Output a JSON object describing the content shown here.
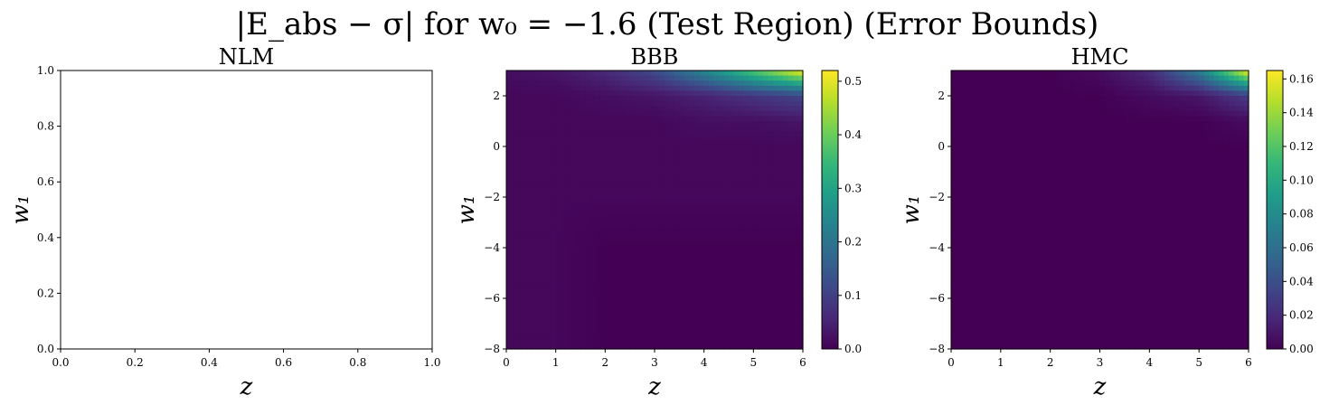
{
  "figure": {
    "suptitle": "|E_abs − σ| for w₀ = −1.6 (Test Region) (Error Bounds)"
  },
  "colormap": {
    "name": "viridis",
    "stops": [
      "#440154",
      "#482878",
      "#3e4989",
      "#31688e",
      "#26828e",
      "#1f9e89",
      "#35b779",
      "#6ece58",
      "#b5de2b",
      "#fde725"
    ]
  },
  "chart_data": [
    {
      "type": "heatmap",
      "title": "NLM",
      "xlabel": "z",
      "ylabel": "w₁",
      "xlim": [
        0,
        1
      ],
      "ylim": [
        0,
        1
      ],
      "xticks": [
        "0.0",
        "0.2",
        "0.4",
        "0.6",
        "0.8",
        "1.0"
      ],
      "yticks": [
        "0.0",
        "0.2",
        "0.4",
        "0.6",
        "0.8",
        "1.0"
      ],
      "empty": true
    },
    {
      "type": "heatmap",
      "title": "BBB",
      "xlabel": "z",
      "ylabel": "w₁",
      "xlim": [
        0,
        6
      ],
      "ylim": [
        -8,
        3
      ],
      "xticks": [
        "0",
        "1",
        "2",
        "3",
        "4",
        "5",
        "6"
      ],
      "yticks": [
        "−8",
        "−6",
        "−4",
        "−2",
        "0",
        "2"
      ],
      "colorbar": {
        "vmin": 0,
        "vmax": 0.52,
        "ticks": [
          "0.0",
          "0.1",
          "0.2",
          "0.3",
          "0.4",
          "0.5"
        ]
      },
      "grid": {
        "x": [
          0,
          1,
          2,
          3,
          4,
          5,
          6
        ],
        "y": [
          3,
          2,
          1,
          0,
          -2,
          -4,
          -6,
          -8
        ],
        "values": [
          [
            0.02,
            0.03,
            0.06,
            0.12,
            0.24,
            0.38,
            0.52
          ],
          [
            0.01,
            0.01,
            0.02,
            0.03,
            0.05,
            0.08,
            0.11
          ],
          [
            0.01,
            0.01,
            0.01,
            0.01,
            0.02,
            0.02,
            0.03
          ],
          [
            0.01,
            0.01,
            0.01,
            0.01,
            0.01,
            0.01,
            0.01
          ],
          [
            0.01,
            0.01,
            0.01,
            0.01,
            0.01,
            0.01,
            0.01
          ],
          [
            0.01,
            0.01,
            0.0,
            0.0,
            0.0,
            0.0,
            0.0
          ],
          [
            0.01,
            0.01,
            0.0,
            0.0,
            0.0,
            0.0,
            0.0
          ],
          [
            0.01,
            0.01,
            0.0,
            0.0,
            0.0,
            0.0,
            0.0
          ]
        ]
      }
    },
    {
      "type": "heatmap",
      "title": "HMC",
      "xlabel": "z",
      "ylabel": "w₁",
      "xlim": [
        0,
        6
      ],
      "ylim": [
        -8,
        3
      ],
      "xticks": [
        "0",
        "1",
        "2",
        "3",
        "4",
        "5",
        "6"
      ],
      "yticks": [
        "−8",
        "−6",
        "−4",
        "−2",
        "0",
        "2"
      ],
      "colorbar": {
        "vmin": 0,
        "vmax": 0.165,
        "ticks": [
          "0.00",
          "0.02",
          "0.04",
          "0.06",
          "0.08",
          "0.10",
          "0.12",
          "0.14",
          "0.16"
        ]
      },
      "grid": {
        "x": [
          0,
          1,
          2,
          3,
          4,
          5,
          6
        ],
        "y": [
          3,
          2,
          1,
          0,
          -2,
          -4,
          -6,
          -8
        ],
        "values": [
          [
            0.0,
            0.0,
            0.0,
            0.005,
            0.02,
            0.07,
            0.165
          ],
          [
            0.0,
            0.0,
            0.0,
            0.0,
            0.005,
            0.01,
            0.03
          ],
          [
            0.0,
            0.0,
            0.0,
            0.0,
            0.0,
            0.0,
            0.005
          ],
          [
            0.0,
            0.0,
            0.0,
            0.0,
            0.0,
            0.0,
            0.0
          ],
          [
            0.0,
            0.0,
            0.0,
            0.0,
            0.0,
            0.0,
            0.0
          ],
          [
            0.0,
            0.0,
            0.0,
            0.0,
            0.0,
            0.0,
            0.0
          ],
          [
            0.0,
            0.0,
            0.0,
            0.0,
            0.0,
            0.0,
            0.0
          ],
          [
            0.0,
            0.0,
            0.0,
            0.0,
            0.0,
            0.0,
            0.0
          ]
        ]
      }
    }
  ]
}
